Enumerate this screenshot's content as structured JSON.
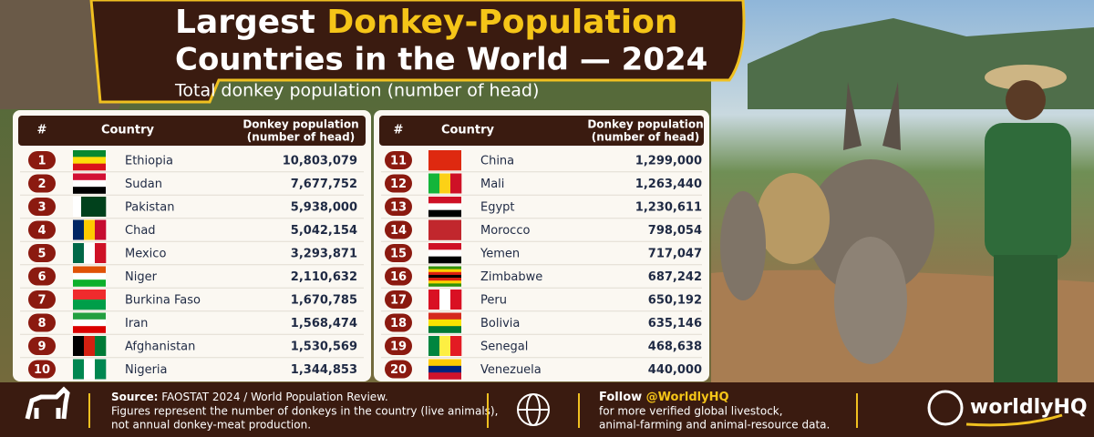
{
  "header": {
    "title_start": "Largest",
    "title_highlight": "Donkey-Population",
    "title_line2": "Countries in the World — 2024",
    "subtitle": "Total donkey population (number of head)"
  },
  "tables": [
    {
      "columns": [
        "#",
        "Country",
        "Donkey population",
        "(number of head)"
      ],
      "rows": [
        [
          1,
          "Ethiopia",
          "10,803,079"
        ],
        [
          2,
          "Sudan",
          "7,677,752"
        ],
        [
          3,
          "Pakistan",
          "5,938,000"
        ],
        [
          4,
          "Chad",
          "5,042,154"
        ],
        [
          5,
          "Mexico",
          "3,293,871"
        ],
        [
          6,
          "Niger",
          "2,110,632"
        ],
        [
          7,
          "Burkina Faso",
          "1,670,785"
        ],
        [
          8,
          "Iran",
          "1,568,474"
        ],
        [
          9,
          "Afghanistan",
          "1,530,569"
        ],
        [
          10,
          "Nigeria",
          "1,344,853"
        ]
      ]
    },
    {
      "columns": [
        "#",
        "Country",
        "Donkey population",
        "(number of head)"
      ],
      "rows": [
        [
          11,
          "China",
          "1,299,000"
        ],
        [
          12,
          "Mali",
          "1,263,440"
        ],
        [
          13,
          "Egypt",
          "1,230,611"
        ],
        [
          14,
          "Morocco",
          "798,054"
        ],
        [
          15,
          "Yemen",
          "717,047"
        ],
        [
          16,
          "Zimbabwe",
          "687,242"
        ],
        [
          17,
          "Peru",
          "650,192"
        ],
        [
          18,
          "Bolivia",
          "635,146"
        ],
        [
          19,
          "Senegal",
          "468,638"
        ],
        [
          20,
          "Venezuela",
          "440,000"
        ]
      ]
    }
  ],
  "footer": {
    "source_label": "Source:",
    "source": "FAOSTAT 2024 / World Population Review.",
    "note_line1": "Figures represent the number of donkeys in the country (live animals),",
    "note_line2": "not annual donkey-meat production.",
    "follow": "Follow",
    "handle": "@WorldlyHQ",
    "follow_line1": "for more verified global livestock,",
    "follow_line2": "animal-farming and animal-resource data.",
    "brand": "worldlyHQ"
  }
}
